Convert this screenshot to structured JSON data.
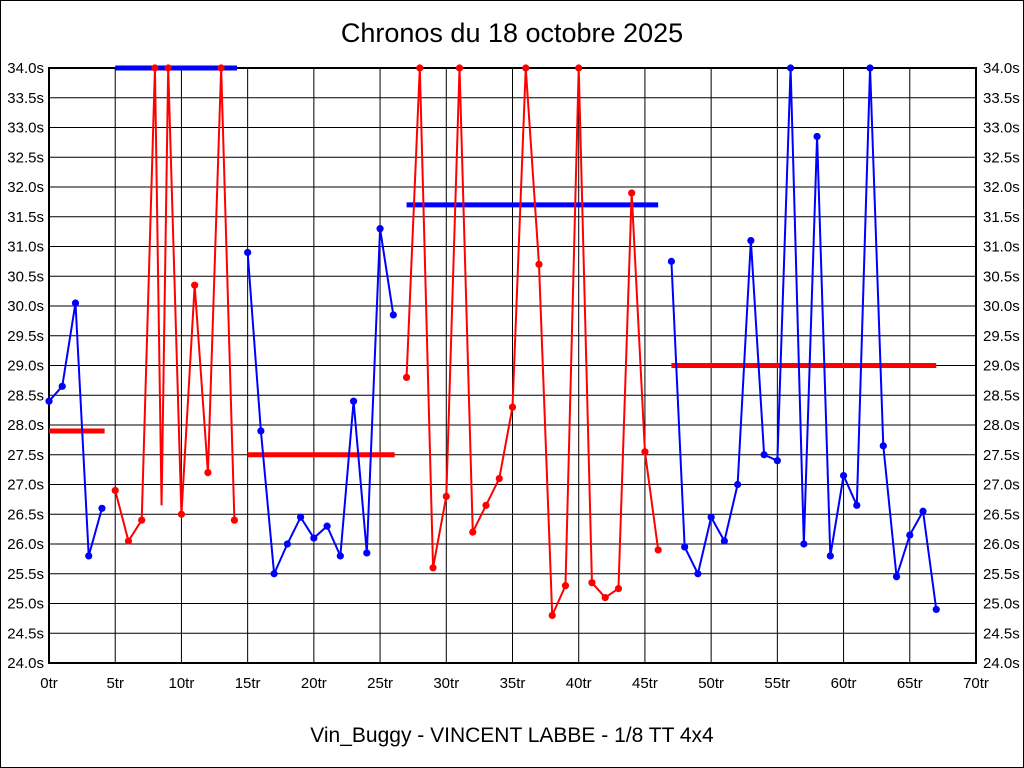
{
  "chart_data": {
    "type": "line",
    "title": "Chronos du 18 octobre 2025",
    "footer": "Vin_Buggy - VINCENT LABBE - 1/8 TT 4x4",
    "xlabel": "",
    "ylabel": "",
    "grid": true,
    "axes": {
      "x": {
        "min": 0,
        "max": 70,
        "step": 5,
        "suffix": "tr",
        "labels": [
          "0tr",
          "5tr",
          "10tr",
          "15tr",
          "20tr",
          "25tr",
          "30tr",
          "35tr",
          "40tr",
          "45tr",
          "50tr",
          "55tr",
          "60tr",
          "65tr",
          "70tr"
        ]
      },
      "y": {
        "min": 24.0,
        "max": 34.0,
        "step": 0.5,
        "suffix": "s",
        "labels_top_to_bottom": [
          "34.0s",
          "33.5s",
          "33.0s",
          "32.5s",
          "32.0s",
          "31.5s",
          "31.0s",
          "30.5s",
          "30.0s",
          "29.5s",
          "29.0s",
          "28.5s",
          "28.0s",
          "27.5s",
          "27.0s",
          "26.5s",
          "26.0s",
          "25.5s",
          "25.0s",
          "24.5s",
          "24.0s"
        ],
        "labels_on_both_sides": true
      }
    },
    "colors": {
      "blue_series": "#0000ff",
      "red_series": "#ff0000",
      "grid": "#000000",
      "background": "#ffffff"
    },
    "series": [
      {
        "name": "run-1-blue",
        "color": "#0000ff",
        "points": [
          [
            0,
            28.4
          ],
          [
            1,
            28.65
          ],
          [
            2,
            30.05
          ],
          [
            3,
            25.8
          ],
          [
            4,
            26.6
          ]
        ]
      },
      {
        "name": "run-2-red",
        "color": "#ff0000",
        "points": [
          [
            5,
            26.9
          ],
          [
            6,
            26.05
          ],
          [
            7,
            26.4
          ],
          [
            8,
            34.0
          ],
          [
            8.5,
            26.65,
            false
          ],
          [
            9,
            34.0
          ],
          [
            10,
            26.5
          ],
          [
            11,
            30.35
          ],
          [
            12,
            27.2
          ],
          [
            13,
            34.0
          ],
          [
            14,
            26.4
          ]
        ]
      },
      {
        "name": "run-3-blue",
        "color": "#0000ff",
        "points": [
          [
            15,
            30.9
          ],
          [
            16,
            27.9
          ],
          [
            17,
            25.5
          ],
          [
            18,
            26.0
          ],
          [
            19,
            26.45
          ],
          [
            20,
            26.1
          ],
          [
            21,
            26.3
          ],
          [
            22,
            25.8
          ],
          [
            23,
            28.4
          ],
          [
            24,
            25.85
          ],
          [
            25,
            31.3
          ],
          [
            26,
            29.85
          ]
        ]
      },
      {
        "name": "run-4-red",
        "color": "#ff0000",
        "points": [
          [
            27,
            28.8
          ],
          [
            28,
            34.0
          ],
          [
            29,
            25.6
          ],
          [
            30,
            26.8
          ],
          [
            31,
            34.0
          ],
          [
            32,
            26.2
          ],
          [
            33,
            26.65
          ],
          [
            34,
            27.1
          ],
          [
            35,
            28.3
          ],
          [
            36,
            34.0
          ],
          [
            37,
            30.7
          ],
          [
            38,
            24.8
          ],
          [
            39,
            25.3
          ],
          [
            40,
            34.0
          ],
          [
            41,
            25.35
          ],
          [
            42,
            25.1
          ],
          [
            43,
            25.25
          ],
          [
            44,
            31.9
          ],
          [
            45,
            27.55
          ],
          [
            46,
            25.9
          ]
        ]
      },
      {
        "name": "run-5-blue",
        "color": "#0000ff",
        "points": [
          [
            47,
            30.75
          ],
          [
            48,
            25.95
          ],
          [
            49,
            25.5
          ],
          [
            50,
            26.45
          ],
          [
            51,
            26.05
          ],
          [
            52,
            27.0
          ],
          [
            53,
            31.1
          ],
          [
            54,
            27.5
          ],
          [
            55,
            27.4
          ],
          [
            56,
            34.0
          ],
          [
            57,
            26.0
          ],
          [
            58,
            32.85
          ],
          [
            59,
            25.8
          ],
          [
            60,
            27.15
          ],
          [
            61,
            26.65
          ],
          [
            62,
            34.0
          ],
          [
            63,
            27.65
          ],
          [
            64,
            25.45
          ],
          [
            65,
            26.15
          ],
          [
            66,
            26.55
          ],
          [
            67,
            24.9
          ]
        ]
      }
    ],
    "averages": [
      {
        "name": "avg-run-1",
        "color": "#ff0000",
        "value": 27.9,
        "from": 0,
        "to": 4.2
      },
      {
        "name": "avg-run-2",
        "color": "#0000ff",
        "value": 34.0,
        "from": 5,
        "to": 14.2
      },
      {
        "name": "avg-run-3",
        "color": "#ff0000",
        "value": 27.5,
        "from": 15,
        "to": 26.1
      },
      {
        "name": "avg-run-4",
        "color": "#0000ff",
        "value": 31.7,
        "from": 27,
        "to": 46
      },
      {
        "name": "avg-run-5",
        "color": "#ff0000",
        "value": 29.0,
        "from": 47,
        "to": 67
      }
    ]
  }
}
